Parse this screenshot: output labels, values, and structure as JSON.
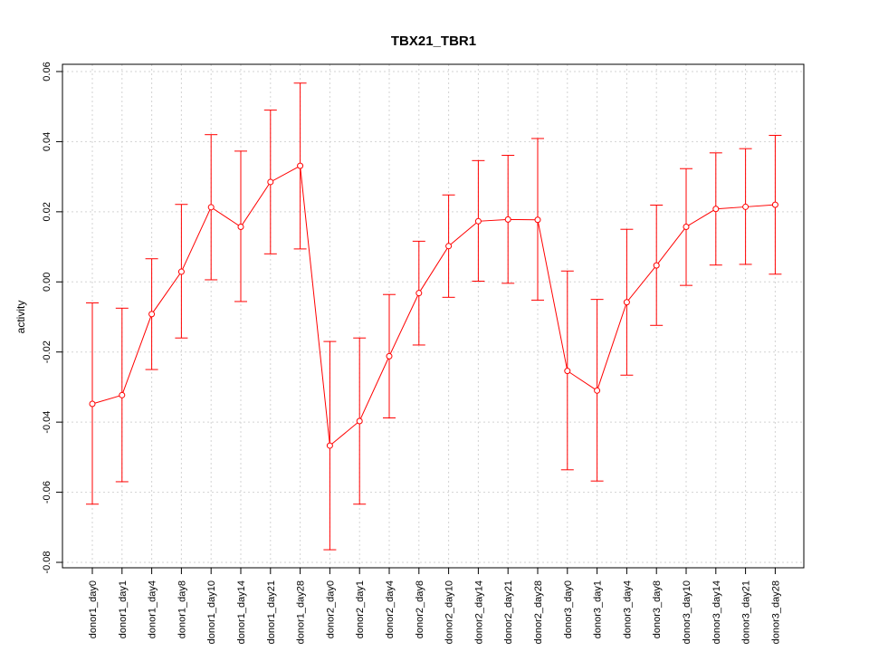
{
  "chart_data": {
    "type": "line",
    "title": "TBX21_TBR1",
    "xlabel": "",
    "ylabel": "activity",
    "ylim": [
      -0.08,
      0.06
    ],
    "yticks": [
      -0.08,
      -0.06,
      -0.04,
      -0.02,
      0.0,
      0.02,
      0.04,
      0.06
    ],
    "ytick_labels": [
      "-0.08",
      "-0.06",
      "-0.04",
      "-0.02",
      "0.00",
      "0.02",
      "0.04",
      "0.06"
    ],
    "grid": true,
    "color": "#ff0000",
    "categories": [
      "donor1_day0",
      "donor1_day1",
      "donor1_day4",
      "donor1_day8",
      "donor1_day10",
      "donor1_day14",
      "donor1_day21",
      "donor1_day28",
      "donor2_day0",
      "donor2_day1",
      "donor2_day4",
      "donor2_day8",
      "donor2_day10",
      "donor2_day14",
      "donor2_day21",
      "donor2_day28",
      "donor3_day0",
      "donor3_day1",
      "donor3_day4",
      "donor3_day8",
      "donor3_day10",
      "donor3_day14",
      "donor3_day21",
      "donor3_day28"
    ],
    "series": [
      {
        "values": [
          -0.0348,
          -0.0323,
          -0.0092,
          0.0029,
          0.0213,
          0.0157,
          0.0285,
          0.0331,
          -0.0467,
          -0.0397,
          -0.0212,
          -0.0032,
          0.0102,
          0.0173,
          0.0178,
          0.0177,
          -0.0254,
          -0.031,
          -0.0058,
          0.0047,
          0.0157,
          0.0208,
          0.0214,
          0.022
        ],
        "lower": [
          -0.0634,
          -0.057,
          -0.025,
          -0.016,
          0.0006,
          -0.0056,
          0.008,
          0.0094,
          -0.0764,
          -0.0634,
          -0.0388,
          -0.018,
          -0.0044,
          0.0002,
          -0.0004,
          -0.0052,
          -0.0536,
          -0.0568,
          -0.0266,
          -0.0124,
          -0.001,
          0.0048,
          0.005,
          0.0022
        ],
        "upper": [
          -0.006,
          -0.0075,
          0.0066,
          0.0221,
          0.042,
          0.0373,
          0.049,
          0.0567,
          -0.017,
          -0.016,
          -0.0036,
          0.0116,
          0.0248,
          0.0346,
          0.0361,
          0.0409,
          0.0031,
          -0.005,
          0.015,
          0.0219,
          0.0323,
          0.0368,
          0.038,
          0.0418
        ]
      }
    ]
  }
}
